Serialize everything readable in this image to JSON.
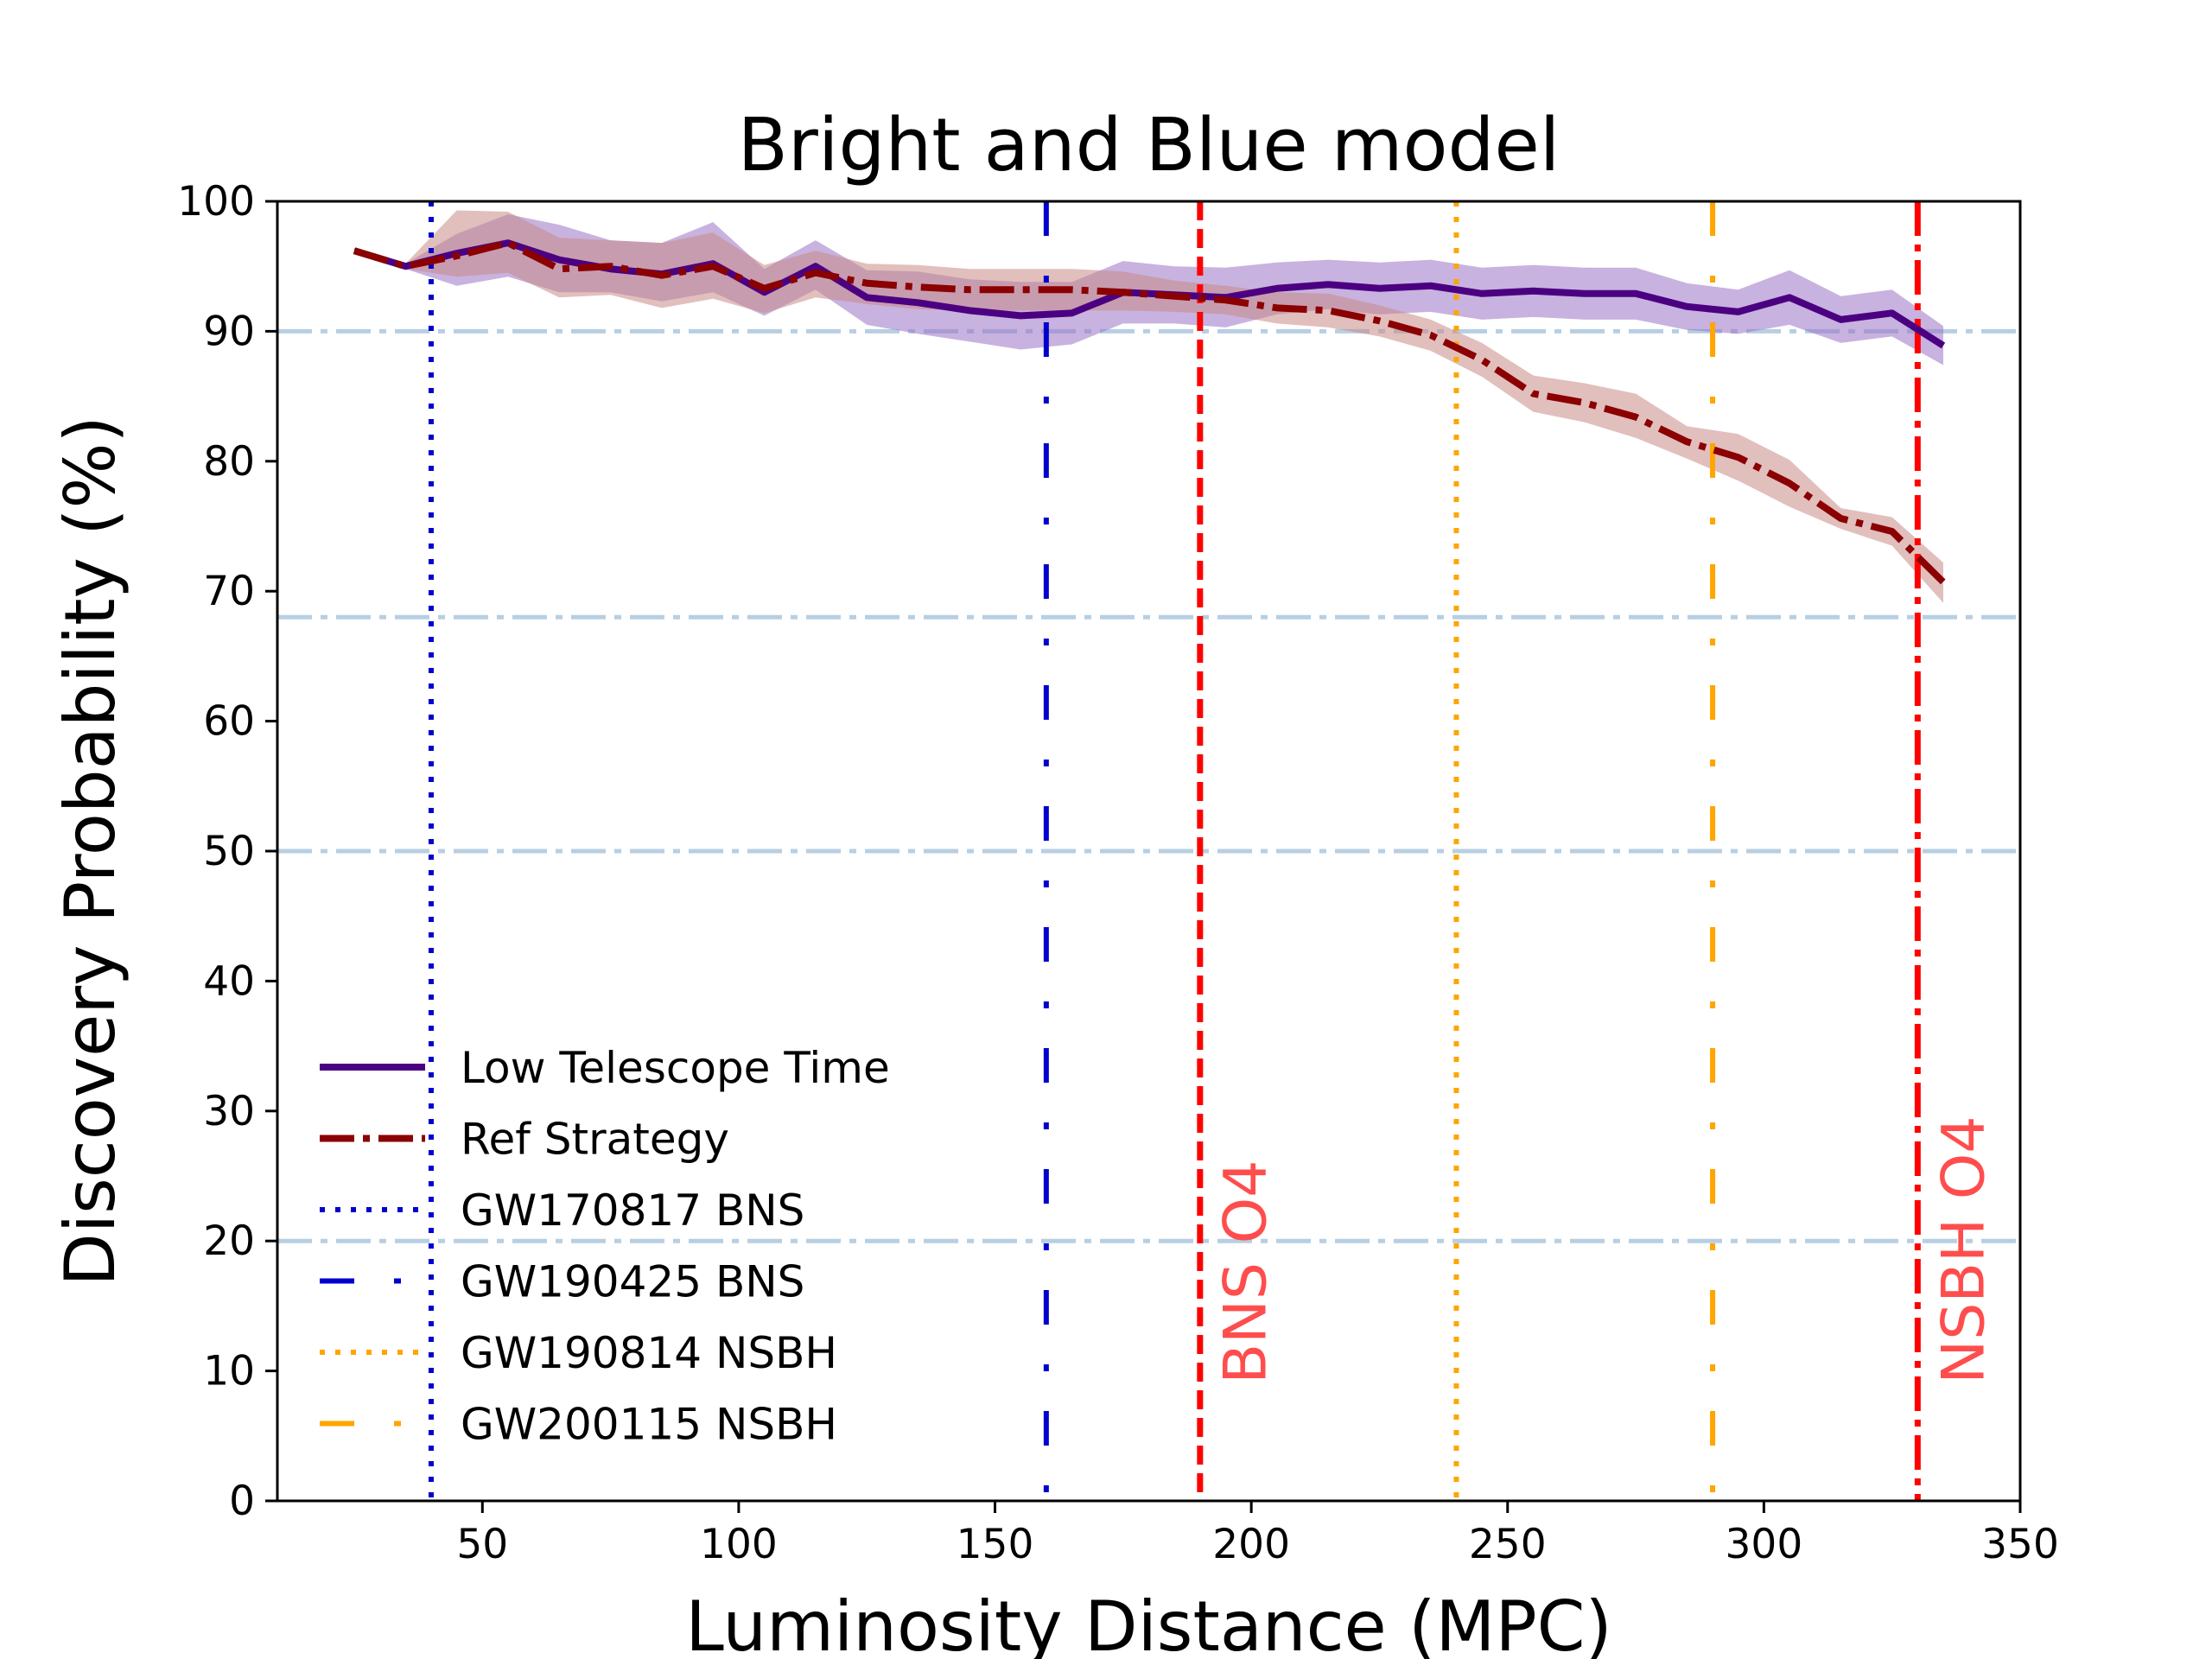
{
  "chart_data": {
    "type": "line",
    "title": "Bright and Blue model",
    "xlabel": "Luminosity Distance (MPC)",
    "ylabel": "Discovery Probability (%)",
    "xlim": [
      10,
      350
    ],
    "ylim": [
      0,
      100
    ],
    "xticks": [
      50,
      100,
      150,
      200,
      250,
      300,
      350
    ],
    "yticks": [
      0,
      10,
      20,
      30,
      40,
      50,
      60,
      70,
      80,
      90,
      100
    ],
    "x": [
      25,
      35,
      45,
      55,
      65,
      75,
      85,
      95,
      105,
      115,
      125,
      135,
      145,
      155,
      165,
      175,
      185,
      195,
      205,
      215,
      225,
      235,
      245,
      255,
      265,
      275,
      285,
      295,
      305,
      315,
      325,
      335
    ],
    "series": [
      {
        "name": "Low Telescope Time",
        "color": "#4b0082",
        "band_color": "#9b72c4",
        "style": "solid",
        "values": [
          96.2,
          95.0,
          96.0,
          96.8,
          95.5,
          94.8,
          94.4,
          95.2,
          93.0,
          95.0,
          92.6,
          92.2,
          91.6,
          91.2,
          91.4,
          93.0,
          92.8,
          92.6,
          93.3,
          93.6,
          93.3,
          93.5,
          92.9,
          93.1,
          92.9,
          92.9,
          91.9,
          91.5,
          92.6,
          90.9,
          91.4,
          88.9
        ],
        "lower": [
          96.0,
          94.8,
          93.5,
          94.2,
          93.0,
          93.0,
          92.3,
          93.0,
          91.2,
          93.2,
          90.5,
          89.8,
          89.2,
          88.6,
          89.0,
          90.6,
          90.6,
          90.3,
          91.3,
          91.7,
          91.3,
          91.5,
          90.9,
          91.1,
          90.9,
          90.9,
          90.1,
          89.8,
          90.5,
          89.1,
          89.6,
          87.4
        ],
        "upper": [
          96.4,
          95.2,
          97.5,
          99.0,
          98.2,
          97.0,
          96.8,
          98.4,
          94.8,
          97.0,
          94.7,
          94.6,
          94.0,
          93.8,
          93.8,
          95.4,
          95.0,
          94.9,
          95.3,
          95.5,
          95.3,
          95.5,
          94.9,
          95.1,
          94.9,
          94.9,
          93.7,
          93.2,
          94.7,
          92.7,
          93.2,
          90.4
        ]
      },
      {
        "name": "Ref Strategy",
        "color": "#8b0000",
        "band_color": "#c88a86",
        "style": "dashdot",
        "values": [
          96.2,
          95.0,
          95.8,
          96.8,
          94.8,
          95.0,
          94.3,
          95.0,
          93.3,
          94.5,
          93.7,
          93.4,
          93.2,
          93.2,
          93.2,
          93.0,
          92.7,
          92.4,
          91.8,
          91.6,
          90.8,
          89.7,
          87.8,
          85.2,
          84.5,
          83.4,
          81.5,
          80.3,
          78.3,
          75.6,
          74.6,
          70.7
        ],
        "lower": [
          96.0,
          94.8,
          94.2,
          94.5,
          92.6,
          92.8,
          91.8,
          92.5,
          91.4,
          92.6,
          92.1,
          91.7,
          91.6,
          91.6,
          91.6,
          91.6,
          91.5,
          91.3,
          90.6,
          90.3,
          89.6,
          88.5,
          86.5,
          83.8,
          83.0,
          81.8,
          80.2,
          78.5,
          76.5,
          74.8,
          73.5,
          69.1
        ],
        "upper": [
          96.4,
          95.2,
          99.3,
          99.2,
          97.2,
          97.0,
          96.8,
          97.6,
          95.1,
          96.2,
          95.2,
          95.1,
          94.8,
          94.8,
          94.8,
          94.6,
          93.9,
          93.5,
          93.0,
          92.9,
          92.0,
          90.9,
          89.1,
          86.6,
          86.0,
          85.2,
          82.7,
          82.1,
          80.1,
          76.4,
          75.7,
          72.2
        ]
      }
    ],
    "hlines": [
      {
        "y": 90,
        "color": "#b7cfe3"
      },
      {
        "y": 68,
        "color": "#b7cfe3"
      },
      {
        "y": 50,
        "color": "#b7cfe3"
      },
      {
        "y": 20,
        "color": "#b7cfe3"
      }
    ],
    "vlines": [
      {
        "name": "GW170817 BNS",
        "x": 40,
        "color": "#0000cd",
        "style": "dotted",
        "in_legend": true
      },
      {
        "name": "GW190425 BNS",
        "x": 160,
        "color": "#0000cd",
        "style": "dashdot-wide",
        "in_legend": true
      },
      {
        "name": "GW190814 NSBH",
        "x": 240,
        "color": "#ffa500",
        "style": "dotted",
        "in_legend": true
      },
      {
        "name": "GW200115 NSBH",
        "x": 290,
        "color": "#ffa500",
        "style": "dashdot-wide",
        "in_legend": true
      },
      {
        "name": "BNS O4",
        "x": 190,
        "color": "#ff0000",
        "style": "dashed",
        "in_legend": false
      },
      {
        "name": "NSBH O4",
        "x": 330,
        "color": "#ff0000",
        "style": "dashdot",
        "in_legend": false
      }
    ],
    "annotations": [
      {
        "text": "BNS O4",
        "x": 191,
        "y": 9,
        "color": "#ff4d4d",
        "rotation": 90
      },
      {
        "text": "NSBH O4",
        "x": 331,
        "y": 9,
        "color": "#ff4d4d",
        "rotation": 90
      }
    ],
    "legend": {
      "placement": "lower-left",
      "entries": [
        "Low Telescope Time",
        "Ref Strategy",
        "GW170817 BNS",
        "GW190425 BNS",
        "GW190814 NSBH",
        "GW200115 NSBH"
      ]
    },
    "grid": false
  }
}
